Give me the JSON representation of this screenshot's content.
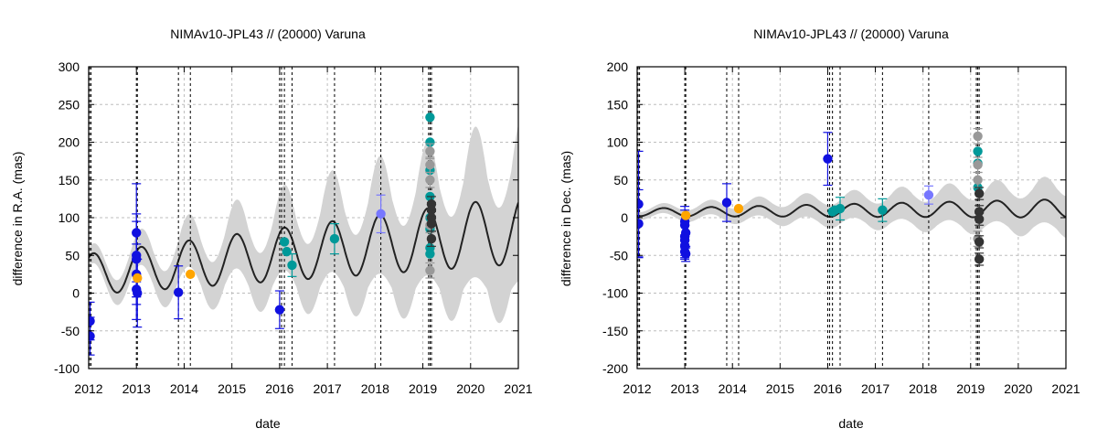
{
  "chart_data": [
    {
      "type": "scatter",
      "title": "NIMAv10-JPL43 // (20000) Varuna",
      "xlabel": "date",
      "ylabel": "difference in R.A. (mas)",
      "xlim": [
        2012,
        2021
      ],
      "ylim": [
        -100,
        300
      ],
      "xticks": [
        "2012",
        "2013",
        "2014",
        "2015",
        "2016",
        "2017",
        "2018",
        "2019",
        "2020",
        "2021"
      ],
      "yticks": [
        "-100",
        "-50",
        "0",
        "50",
        "100",
        "150",
        "200",
        "250",
        "300"
      ],
      "grid": true,
      "vlines": [
        2012.02,
        2012.05,
        2013.0,
        2013.02,
        2013.88,
        2014.13,
        2016.0,
        2016.04,
        2016.1,
        2016.26,
        2017.15,
        2018.12,
        2019.12,
        2019.15,
        2019.18
      ],
      "model": {
        "color": "#222222",
        "band_color": "#d3d3d3",
        "base": 25,
        "base_slope": 6.5,
        "amp": 27,
        "amp_slope": 2.0,
        "period": 1.0,
        "phase": 2011.85,
        "band_base": 12,
        "band_slope": 7.5,
        "band_amp_extra": 30
      },
      "series": [
        {
          "color": "#1010e0",
          "points": [
            [
              2012.03,
              -37,
              25
            ],
            [
              2012.03,
              -57,
              25
            ],
            [
              2013.0,
              80,
              65
            ],
            [
              2013.0,
              50,
              55
            ],
            [
              2013.0,
              45,
              50
            ],
            [
              2013.0,
              25,
              40
            ],
            [
              2013.0,
              5,
              40
            ],
            [
              2013.02,
              0,
              45
            ],
            [
              2013.88,
              1,
              35
            ],
            [
              2016.0,
              -22,
              25
            ]
          ]
        },
        {
          "color": "#ffa500",
          "points": [
            [
              2013.02,
              20,
              0
            ],
            [
              2014.13,
              25,
              0
            ]
          ]
        },
        {
          "color": "#7777ff",
          "points": [
            [
              2018.12,
              105,
              25
            ]
          ]
        },
        {
          "color": "#009999",
          "points": [
            [
              2016.1,
              68,
              0
            ],
            [
              2016.15,
              55,
              0
            ],
            [
              2016.26,
              37,
              15
            ],
            [
              2017.15,
              72,
              20
            ],
            [
              2019.15,
              233,
              0
            ],
            [
              2019.15,
              200,
              0
            ],
            [
              2019.15,
              163,
              0
            ],
            [
              2019.15,
              128,
              0
            ],
            [
              2019.15,
              100,
              0
            ],
            [
              2019.15,
              85,
              0
            ],
            [
              2019.15,
              60,
              0
            ],
            [
              2019.15,
              52,
              0
            ]
          ]
        },
        {
          "color": "#999999",
          "points": [
            [
              2019.15,
              188,
              10
            ],
            [
              2019.15,
              170,
              10
            ],
            [
              2019.15,
              150,
              10
            ],
            [
              2019.15,
              30,
              10
            ],
            [
              2019.15,
              90,
              10
            ]
          ]
        },
        {
          "color": "#333333",
          "points": [
            [
              2019.18,
              118,
              10
            ],
            [
              2019.18,
              110,
              10
            ],
            [
              2019.18,
              100,
              10
            ],
            [
              2019.18,
              92,
              10
            ],
            [
              2019.18,
              72,
              10
            ]
          ]
        }
      ]
    },
    {
      "type": "scatter",
      "title": "NIMAv10-JPL43 // (20000) Varuna",
      "xlabel": "date",
      "ylabel": "difference in Dec. (mas)",
      "xlim": [
        2012,
        2021
      ],
      "ylim": [
        -200,
        200
      ],
      "xticks": [
        "2012",
        "2013",
        "2014",
        "2015",
        "2016",
        "2017",
        "2018",
        "2019",
        "2020",
        "2021"
      ],
      "yticks": [
        "-200",
        "-150",
        "-100",
        "-50",
        "0",
        "50",
        "100",
        "150",
        "200"
      ],
      "grid": true,
      "vlines": [
        2012.02,
        2012.05,
        2013.0,
        2013.02,
        2013.88,
        2014.13,
        2016.0,
        2016.04,
        2016.1,
        2016.26,
        2017.15,
        2018.12,
        2019.12,
        2019.15,
        2019.18
      ],
      "model": {
        "color": "#222222",
        "band_color": "#d3d3d3",
        "base": 7,
        "base_slope": 0.6,
        "amp": 5,
        "amp_slope": 0.8,
        "period": 1.0,
        "phase": 2012.3,
        "band_base": 5,
        "band_slope": 2.5,
        "band_amp_extra": 4
      },
      "series": [
        {
          "color": "#1010e0",
          "points": [
            [
              2012.03,
              18,
              70
            ],
            [
              2012.03,
              -8,
              45
            ],
            [
              2013.0,
              -5,
              20
            ],
            [
              2013.0,
              -10,
              20
            ],
            [
              2013.0,
              -25,
              20
            ],
            [
              2013.0,
              -30,
              20
            ],
            [
              2013.0,
              -38,
              15
            ],
            [
              2013.0,
              -45,
              10
            ],
            [
              2013.02,
              -48,
              10
            ],
            [
              2013.02,
              -20,
              20
            ],
            [
              2013.88,
              20,
              25
            ],
            [
              2016.0,
              78,
              35
            ]
          ]
        },
        {
          "color": "#ffa500",
          "points": [
            [
              2013.02,
              3,
              0
            ],
            [
              2014.13,
              12,
              0
            ]
          ]
        },
        {
          "color": "#7777ff",
          "points": [
            [
              2018.12,
              30,
              12
            ]
          ]
        },
        {
          "color": "#009999",
          "points": [
            [
              2016.1,
              8,
              0
            ],
            [
              2016.15,
              10,
              0
            ],
            [
              2016.26,
              12,
              15
            ],
            [
              2017.15,
              10,
              15
            ],
            [
              2019.15,
              88,
              0
            ],
            [
              2019.15,
              72,
              0
            ],
            [
              2019.15,
              40,
              0
            ]
          ]
        },
        {
          "color": "#999999",
          "points": [
            [
              2019.15,
              108,
              10
            ],
            [
              2019.15,
              70,
              10
            ],
            [
              2019.15,
              50,
              10
            ],
            [
              2019.15,
              -28,
              10
            ]
          ]
        },
        {
          "color": "#333333",
          "points": [
            [
              2019.18,
              32,
              8
            ],
            [
              2019.18,
              8,
              8
            ],
            [
              2019.18,
              -2,
              8
            ],
            [
              2019.18,
              -32,
              8
            ],
            [
              2019.18,
              -55,
              8
            ]
          ]
        }
      ]
    }
  ]
}
